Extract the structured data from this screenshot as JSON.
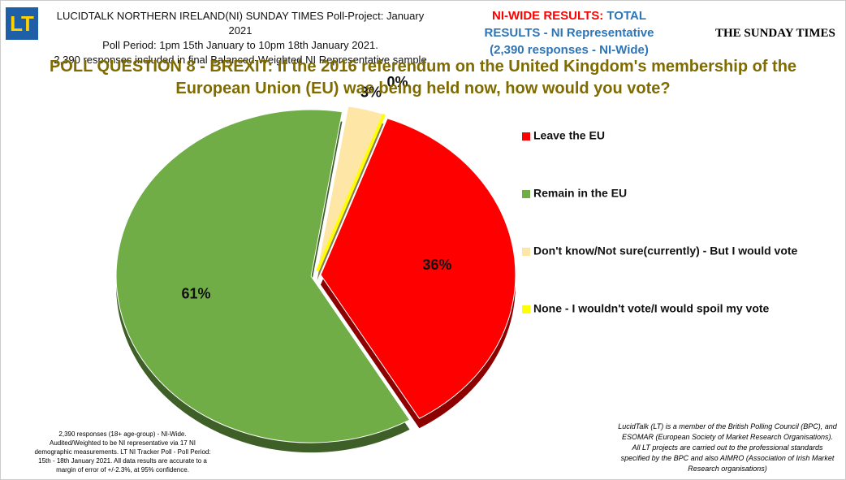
{
  "header": {
    "logo": "LT",
    "lines": [
      "LUCIDTALK NORTHERN IRELAND(NI) SUNDAY TIMES Poll-Project: January 2021",
      "Poll Period: 1pm 15th January to 10pm 18th January 2021.",
      "2,390 responses included in final Balanced-Weighted NI Representative sample"
    ],
    "results_red": "NI-WIDE RESULTS:",
    "results_blue": "TOTAL",
    "results_line2": "RESULTS - NI Representative",
    "results_line3": "(2,390 responses - NI-Wide)",
    "brand": "THE SUNDAY TIMES"
  },
  "chart_data": {
    "type": "pie",
    "title": "POLL QUESTION 8 - BREXIT: If the 2016 referendum on the United Kingdom's membership of the European Union (EU) was being held now, how would you vote?",
    "categories": [
      "Leave the EU",
      "Remain in the EU",
      "Don't know/Not sure(currently) - But I would vote",
      "None - I wouldn't vote/I would spoil my vote"
    ],
    "values": [
      36,
      61,
      3,
      0
    ],
    "value_labels": [
      "36%",
      "61%",
      "3%",
      "0%"
    ],
    "colors": [
      "#ff0000",
      "#70ad47",
      "#fde6a6",
      "#ffff00"
    ],
    "legend": "right"
  },
  "footnotes": {
    "left": "2,390 responses (18+ age-group) - NI-Wide. Audited/Weighted to be NI representative via 17 NI demographic measurements. LT NI Tracker Poll - Poll Period: 15th - 18th January 2021. All data results are accurate to a margin of error of +/-2.3%, at 95% confidence.",
    "right": "LucidTalk (LT) is a member of the British Polling Council (BPC), and ESOMAR (European Society of Market Research Organisations). All LT projects are carried out to the professional standards specified by the BPC and also AIMRO (Association of Irish Market Research organisations)"
  }
}
